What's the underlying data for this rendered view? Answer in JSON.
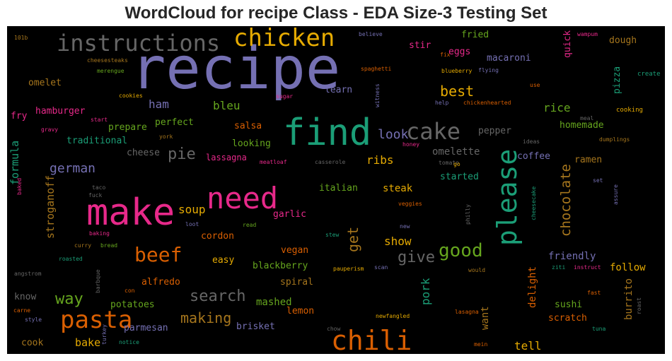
{
  "chart_data": {
    "type": "wordcloud",
    "title": "WordCloud for recipe Class - EDA Size-3 Testing Set",
    "background": "#000000",
    "colormap": "Dark2",
    "words": [
      {
        "text": "recipe",
        "weight": 100,
        "color": "#7570b3"
      },
      {
        "text": "make",
        "weight": 78,
        "color": "#e7298a"
      },
      {
        "text": "find",
        "weight": 75,
        "color": "#1b9e77"
      },
      {
        "text": "need",
        "weight": 64,
        "color": "#e7298a"
      },
      {
        "text": "please",
        "weight": 60,
        "color": "#1b9e77"
      },
      {
        "text": "chili",
        "weight": 57,
        "color": "#d95f02"
      },
      {
        "text": "pasta",
        "weight": 52,
        "color": "#d95f02"
      },
      {
        "text": "cake",
        "weight": 50,
        "color": "#666666"
      },
      {
        "text": "chicken",
        "weight": 47,
        "color": "#e6ab02"
      },
      {
        "text": "instructions",
        "weight": 44,
        "color": "#666666"
      },
      {
        "text": "beef",
        "weight": 41,
        "color": "#d95f02"
      },
      {
        "text": "good",
        "weight": 40,
        "color": "#66a61e"
      },
      {
        "text": "way",
        "weight": 32,
        "color": "#66a61e"
      },
      {
        "text": "search",
        "weight": 32,
        "color": "#666666"
      },
      {
        "text": "give",
        "weight": 32,
        "color": "#666666"
      },
      {
        "text": "chocolate",
        "weight": 31,
        "color": "#a6761d"
      },
      {
        "text": "best",
        "weight": 30,
        "color": "#e6ab02"
      },
      {
        "text": "pie",
        "weight": 30,
        "color": "#666666"
      },
      {
        "text": "get",
        "weight": 30,
        "color": "#a6761d"
      },
      {
        "text": "making",
        "weight": 27,
        "color": "#a6761d"
      },
      {
        "text": "look",
        "weight": 25,
        "color": "#7570b3"
      },
      {
        "text": "german",
        "weight": 25,
        "color": "#7570b3"
      },
      {
        "text": "ham",
        "weight": 23,
        "color": "#7570b3"
      },
      {
        "text": "bleu",
        "weight": 23,
        "color": "#66a61e"
      },
      {
        "text": "rice",
        "weight": 23,
        "color": "#66a61e"
      },
      {
        "text": "pork",
        "weight": 23,
        "color": "#1b9e77"
      },
      {
        "text": "soup",
        "weight": 23,
        "color": "#e6ab02"
      },
      {
        "text": "show",
        "weight": 23,
        "color": "#e6ab02"
      },
      {
        "text": "ribs",
        "weight": 23,
        "color": "#e6ab02"
      },
      {
        "text": "tell",
        "weight": 23,
        "color": "#e6ab02"
      },
      {
        "text": "formula",
        "weight": 22,
        "color": "#1b9e77"
      },
      {
        "text": "stroganoff",
        "weight": 22,
        "color": "#a6761d"
      },
      {
        "text": "bake",
        "weight": 22,
        "color": "#e6ab02"
      },
      {
        "text": "friendly",
        "weight": 21,
        "color": "#7570b3"
      },
      {
        "text": "delight",
        "weight": 21,
        "color": "#d95f02"
      },
      {
        "text": "burrito",
        "weight": 21,
        "color": "#a6761d"
      },
      {
        "text": "want",
        "weight": 21,
        "color": "#a6761d"
      },
      {
        "text": "mashed",
        "weight": 21,
        "color": "#66a61e"
      },
      {
        "text": "omelette",
        "weight": 20,
        "color": "#666666"
      },
      {
        "text": "follow",
        "weight": 20,
        "color": "#e6ab02"
      },
      {
        "text": "steak",
        "weight": 20,
        "color": "#e6ab02"
      },
      {
        "text": "stir",
        "weight": 19,
        "color": "#e7298a"
      },
      {
        "text": "fried",
        "weight": 19,
        "color": "#66a61e"
      },
      {
        "text": "macaroni",
        "weight": 19,
        "color": "#7570b3"
      },
      {
        "text": "eggs",
        "weight": 19,
        "color": "#e7298a"
      },
      {
        "text": "quick",
        "weight": 19,
        "color": "#e7298a"
      },
      {
        "text": "pizza",
        "weight": 19,
        "color": "#1b9e77"
      },
      {
        "text": "dough",
        "weight": 19,
        "color": "#a6761d"
      },
      {
        "text": "salsa",
        "weight": 19,
        "color": "#d95f02"
      },
      {
        "text": "pepper",
        "weight": 19,
        "color": "#666666"
      },
      {
        "text": "prepare",
        "weight": 19,
        "color": "#66a61e"
      },
      {
        "text": "perfect",
        "weight": 19,
        "color": "#66a61e"
      },
      {
        "text": "homemade",
        "weight": 18,
        "color": "#66a61e"
      },
      {
        "text": "looking",
        "weight": 18,
        "color": "#66a61e"
      },
      {
        "text": "cheese",
        "weight": 18,
        "color": "#666666"
      },
      {
        "text": "coffee",
        "weight": 18,
        "color": "#7570b3"
      },
      {
        "text": "ramen",
        "weight": 18,
        "color": "#a6761d"
      },
      {
        "text": "italian",
        "weight": 18,
        "color": "#66a61e"
      },
      {
        "text": "started",
        "weight": 18,
        "color": "#1b9e77"
      },
      {
        "text": "garlic",
        "weight": 18,
        "color": "#e7298a"
      },
      {
        "text": "cordon",
        "weight": 18,
        "color": "#d95f02"
      },
      {
        "text": "easy",
        "weight": 18,
        "color": "#e6ab02"
      },
      {
        "text": "vegan",
        "weight": 18,
        "color": "#d95f02"
      },
      {
        "text": "blackberry",
        "weight": 18,
        "color": "#66a61e"
      },
      {
        "text": "alfredo",
        "weight": 18,
        "color": "#d95f02"
      },
      {
        "text": "spiral",
        "weight": 18,
        "color": "#a6761d"
      },
      {
        "text": "potatoes",
        "weight": 18,
        "color": "#66a61e"
      },
      {
        "text": "lemon",
        "weight": 18,
        "color": "#d95f02"
      },
      {
        "text": "brisket",
        "weight": 18,
        "color": "#7570b3"
      },
      {
        "text": "parmesan",
        "weight": 18,
        "color": "#7570b3"
      },
      {
        "text": "sushi",
        "weight": 18,
        "color": "#66a61e"
      },
      {
        "text": "scratch",
        "weight": 18,
        "color": "#d95f02"
      },
      {
        "text": "cook",
        "weight": 18,
        "color": "#a6761d"
      },
      {
        "text": "know",
        "weight": 18,
        "color": "#666666"
      },
      {
        "text": "hamburger",
        "weight": 18,
        "color": "#e7298a"
      },
      {
        "text": "omelet",
        "weight": 18,
        "color": "#a6761d"
      },
      {
        "text": "fry",
        "weight": 18,
        "color": "#e7298a"
      },
      {
        "text": "traditional",
        "weight": 18,
        "color": "#1b9e77"
      },
      {
        "text": "learn",
        "weight": 18,
        "color": "#7570b3"
      },
      {
        "text": "lassagna",
        "weight": 17,
        "color": "#e7298a"
      },
      {
        "text": "cooking",
        "weight": 13,
        "color": "#e6ab02"
      },
      {
        "text": "create",
        "weight": 12,
        "color": "#1b9e77"
      },
      {
        "text": "dumplings",
        "weight": 12,
        "color": "#a6761d"
      },
      {
        "text": "meal",
        "weight": 12,
        "color": "#666666"
      },
      {
        "text": "ideas",
        "weight": 12,
        "color": "#666666"
      },
      {
        "text": "cookies",
        "weight": 12,
        "color": "#e6ab02"
      },
      {
        "text": "blueberry",
        "weight": 12,
        "color": "#e6ab02"
      },
      {
        "text": "flying",
        "weight": 12,
        "color": "#7570b3"
      },
      {
        "text": "spaghetti",
        "weight": 12,
        "color": "#d95f02"
      },
      {
        "text": "believe",
        "weight": 12,
        "color": "#7570b3"
      },
      {
        "text": "wampum",
        "weight": 11,
        "color": "#e7298a"
      },
      {
        "text": "cheesesteaks",
        "weight": 11,
        "color": "#a6761d"
      },
      {
        "text": "merengue",
        "weight": 11,
        "color": "#66a61e"
      },
      {
        "text": "101b",
        "weight": 11,
        "color": "#a6761d"
      },
      {
        "text": "fix",
        "weight": 11,
        "color": "#d95f02"
      },
      {
        "text": "use",
        "weight": 11,
        "color": "#d95f02"
      },
      {
        "text": "sugar",
        "weight": 11,
        "color": "#e7298a"
      },
      {
        "text": "witness",
        "weight": 11,
        "color": "#7570b3"
      },
      {
        "text": "help",
        "weight": 11,
        "color": "#7570b3"
      },
      {
        "text": "chickenhearted",
        "weight": 11,
        "color": "#d95f02"
      },
      {
        "text": "start",
        "weight": 11,
        "color": "#e7298a"
      },
      {
        "text": "york",
        "weight": 11,
        "color": "#a6761d"
      },
      {
        "text": "gravy",
        "weight": 11,
        "color": "#e7298a"
      },
      {
        "text": "honey",
        "weight": 11,
        "color": "#e7298a"
      },
      {
        "text": "meatloaf",
        "weight": 11,
        "color": "#e7298a"
      },
      {
        "text": "casserole",
        "weight": 11,
        "color": "#666666"
      },
      {
        "text": "tomato",
        "weight": 11,
        "color": "#666666"
      },
      {
        "text": "go",
        "weight": 11,
        "color": "#e6ab02"
      },
      {
        "text": "taco",
        "weight": 11,
        "color": "#666666"
      },
      {
        "text": "fuck",
        "weight": 11,
        "color": "#666666"
      },
      {
        "text": "baked",
        "weight": 11,
        "color": "#e7298a"
      },
      {
        "text": "set",
        "weight": 11,
        "color": "#7570b3"
      },
      {
        "text": "assure",
        "weight": 11,
        "color": "#7570b3"
      },
      {
        "text": "cheesecake",
        "weight": 11,
        "color": "#1b9e77"
      },
      {
        "text": "veggies",
        "weight": 11,
        "color": "#d95f02"
      },
      {
        "text": "philly",
        "weight": 11,
        "color": "#666666"
      },
      {
        "text": "loot",
        "weight": 11,
        "color": "#7570b3"
      },
      {
        "text": "read",
        "weight": 11,
        "color": "#66a61e"
      },
      {
        "text": "new",
        "weight": 11,
        "color": "#7570b3"
      },
      {
        "text": "baking",
        "weight": 11,
        "color": "#e7298a"
      },
      {
        "text": "stew",
        "weight": 11,
        "color": "#1b9e77"
      },
      {
        "text": "curry",
        "weight": 11,
        "color": "#a6761d"
      },
      {
        "text": "bread",
        "weight": 11,
        "color": "#66a61e"
      },
      {
        "text": "roasted",
        "weight": 11,
        "color": "#1b9e77"
      },
      {
        "text": "pauperism",
        "weight": 11,
        "color": "#e6ab02"
      },
      {
        "text": "scan",
        "weight": 11,
        "color": "#7570b3"
      },
      {
        "text": "would",
        "weight": 11,
        "color": "#a6761d"
      },
      {
        "text": "ziti",
        "weight": 11,
        "color": "#1b9e77"
      },
      {
        "text": "instruct",
        "weight": 11,
        "color": "#e7298a"
      },
      {
        "text": "angstrom",
        "weight": 11,
        "color": "#666666"
      },
      {
        "text": "barbque",
        "weight": 11,
        "color": "#666666"
      },
      {
        "text": "con",
        "weight": 11,
        "color": "#d95f02"
      },
      {
        "text": "fast",
        "weight": 11,
        "color": "#d95f02"
      },
      {
        "text": "carne",
        "weight": 11,
        "color": "#d95f02"
      },
      {
        "text": "style",
        "weight": 11,
        "color": "#7570b3"
      },
      {
        "text": "lasagna",
        "weight": 11,
        "color": "#d95f02"
      },
      {
        "text": "roast",
        "weight": 11,
        "color": "#666666"
      },
      {
        "text": "newfangled",
        "weight": 11,
        "color": "#e6ab02"
      },
      {
        "text": "chow",
        "weight": 11,
        "color": "#666666"
      },
      {
        "text": "tuna",
        "weight": 11,
        "color": "#1b9e77"
      },
      {
        "text": "turkey",
        "weight": 11,
        "color": "#7570b3"
      },
      {
        "text": "notice",
        "weight": 11,
        "color": "#1b9e77"
      },
      {
        "text": "mein",
        "weight": 11,
        "color": "#d95f02"
      }
    ]
  }
}
